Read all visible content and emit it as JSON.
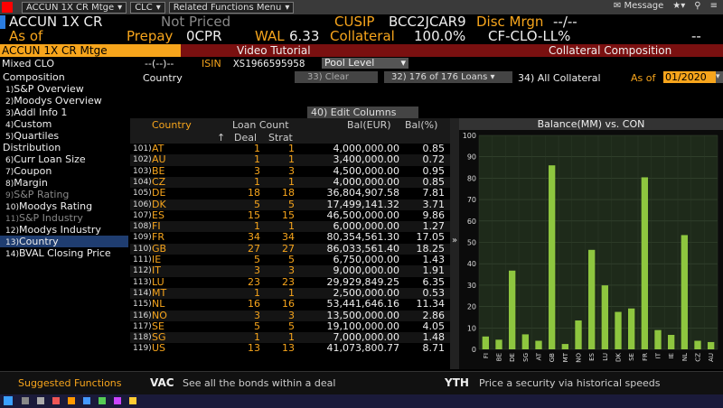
{
  "toolbar": {
    "security": "ACCUN 1X CR Mtge",
    "function": "CLC",
    "related": "Related Functions Menu",
    "message": "Message"
  },
  "header": {
    "ticker": "ACCUN 1X CR",
    "pricing_status": "Not Priced",
    "cusip_label": "CUSIP",
    "cusip": "BCC2JCAR9",
    "disc_mrgn_label": "Disc Mrgn",
    "disc_mrgn_value": "--/--",
    "as_of_label": "As of",
    "prepay_label": "Prepay",
    "prepay_value": "0CPR",
    "wal_label": "WAL",
    "wal_value": "6.33",
    "collateral_label": "Collateral",
    "collateral_value": "100.0%",
    "collateral_type": "CF-CLO-LL%",
    "dashes": "--",
    "tab_left": "ACCUN 1X CR Mtge",
    "tab_video": "Video Tutorial",
    "tab_right": "Collateral Composition"
  },
  "subheader": {
    "deal_type": "Mixed CLO",
    "dashes": "--(--)--",
    "isin_label": "ISIN",
    "isin": "XS1966595958",
    "pool_level": "Pool Level"
  },
  "filters": {
    "dimension": "Country",
    "clear": "33) Clear",
    "loans": "32) 176 of 176 Loans",
    "all_collateral": "34) All Collateral",
    "as_of_label": "As of",
    "as_of_value": "01/2020",
    "edit_columns": "40) Edit Columns"
  },
  "nav": {
    "composition": "Composition",
    "items_a": [
      {
        "num": "1)",
        "label": "S&P Overview",
        "dim": false
      },
      {
        "num": "2)",
        "label": "Moodys Overview",
        "dim": false
      },
      {
        "num": "3)",
        "label": "Addl Info 1",
        "dim": false
      },
      {
        "num": "4)",
        "label": "Custom",
        "dim": false
      },
      {
        "num": "5)",
        "label": "Quartiles",
        "dim": false
      }
    ],
    "distribution": "Distribution",
    "items_b": [
      {
        "num": "6)",
        "label": "Curr Loan Size",
        "dim": false
      },
      {
        "num": "7)",
        "label": "Coupon",
        "dim": false
      },
      {
        "num": "8)",
        "label": "Margin",
        "dim": false
      },
      {
        "num": "9)",
        "label": "S&P Rating",
        "dim": true
      },
      {
        "num": "10)",
        "label": "Moodys Rating",
        "dim": false
      },
      {
        "num": "11)",
        "label": "S&P Industry",
        "dim": true
      },
      {
        "num": "12)",
        "label": "Moodys Industry",
        "dim": false
      },
      {
        "num": "13)",
        "label": "Country",
        "dim": false,
        "selected": true
      },
      {
        "num": "14)",
        "label": "BVAL Closing Price",
        "dim": false
      }
    ]
  },
  "table": {
    "headers": {
      "country": "Country",
      "loan_count": "Loan Count",
      "sort_arrow": "↑",
      "deal": "Deal",
      "strat": "Strat",
      "bal_eur": "Bal(EUR)",
      "bal_pct": "Bal(%)"
    },
    "rows": [
      {
        "n": "101)",
        "c": "AT",
        "deal": "1",
        "strat": "1",
        "bal": "4,000,000.00",
        "pct": "0.85"
      },
      {
        "n": "102)",
        "c": "AU",
        "deal": "1",
        "strat": "1",
        "bal": "3,400,000.00",
        "pct": "0.72"
      },
      {
        "n": "103)",
        "c": "BE",
        "deal": "3",
        "strat": "3",
        "bal": "4,500,000.00",
        "pct": "0.95"
      },
      {
        "n": "104)",
        "c": "CZ",
        "deal": "1",
        "strat": "1",
        "bal": "4,000,000.00",
        "pct": "0.85"
      },
      {
        "n": "105)",
        "c": "DE",
        "deal": "18",
        "strat": "18",
        "bal": "36,804,907.58",
        "pct": "7.81"
      },
      {
        "n": "106)",
        "c": "DK",
        "deal": "5",
        "strat": "5",
        "bal": "17,499,141.32",
        "pct": "3.71"
      },
      {
        "n": "107)",
        "c": "ES",
        "deal": "15",
        "strat": "15",
        "bal": "46,500,000.00",
        "pct": "9.86"
      },
      {
        "n": "108)",
        "c": "FI",
        "deal": "1",
        "strat": "1",
        "bal": "6,000,000.00",
        "pct": "1.27"
      },
      {
        "n": "109)",
        "c": "FR",
        "deal": "34",
        "strat": "34",
        "bal": "80,354,561.30",
        "pct": "17.05"
      },
      {
        "n": "110)",
        "c": "GB",
        "deal": "27",
        "strat": "27",
        "bal": "86,033,561.40",
        "pct": "18.25"
      },
      {
        "n": "111)",
        "c": "IE",
        "deal": "5",
        "strat": "5",
        "bal": "6,750,000.00",
        "pct": "1.43"
      },
      {
        "n": "112)",
        "c": "IT",
        "deal": "3",
        "strat": "3",
        "bal": "9,000,000.00",
        "pct": "1.91"
      },
      {
        "n": "113)",
        "c": "LU",
        "deal": "23",
        "strat": "23",
        "bal": "29,929,849.25",
        "pct": "6.35"
      },
      {
        "n": "114)",
        "c": "MT",
        "deal": "1",
        "strat": "1",
        "bal": "2,500,000.00",
        "pct": "0.53"
      },
      {
        "n": "115)",
        "c": "NL",
        "deal": "16",
        "strat": "16",
        "bal": "53,441,646.16",
        "pct": "11.34"
      },
      {
        "n": "116)",
        "c": "NO",
        "deal": "3",
        "strat": "3",
        "bal": "13,500,000.00",
        "pct": "2.86"
      },
      {
        "n": "117)",
        "c": "SE",
        "deal": "5",
        "strat": "5",
        "bal": "19,100,000.00",
        "pct": "4.05"
      },
      {
        "n": "118)",
        "c": "SG",
        "deal": "1",
        "strat": "1",
        "bal": "7,000,000.00",
        "pct": "1.48"
      },
      {
        "n": "119)",
        "c": "US",
        "deal": "13",
        "strat": "13",
        "bal": "41,073,800.77",
        "pct": "8.71"
      }
    ]
  },
  "chart_data": {
    "type": "bar",
    "title": "Balance(MM) vs. CON",
    "categories": [
      "FI",
      "BE",
      "DE",
      "SG",
      "AT",
      "GB",
      "MT",
      "NO",
      "ES",
      "LU",
      "DK",
      "SE",
      "FR",
      "IT",
      "IE",
      "NL",
      "CZ",
      "AU"
    ],
    "values": [
      6.0,
      4.5,
      36.8,
      7.0,
      4.0,
      86.0,
      2.5,
      13.5,
      46.5,
      29.9,
      17.5,
      19.1,
      80.4,
      9.0,
      6.75,
      53.4,
      4.0,
      3.4
    ],
    "yticks": [
      0,
      10,
      20,
      30,
      40,
      50,
      60,
      70,
      80,
      90,
      100
    ],
    "ylim": [
      0,
      100
    ],
    "bar_color": "#8ec63f",
    "grid": true
  },
  "bottom": {
    "suggested": "Suggested Functions",
    "f1_code": "VAC",
    "f1_desc": "See all the bonds within a deal",
    "f2_code": "YTH",
    "f2_desc": "Price a security via historical speeds"
  },
  "colors": {
    "amber": "#f7a51c",
    "red_bar": "#7a1010",
    "selected": "#1f3d70"
  }
}
